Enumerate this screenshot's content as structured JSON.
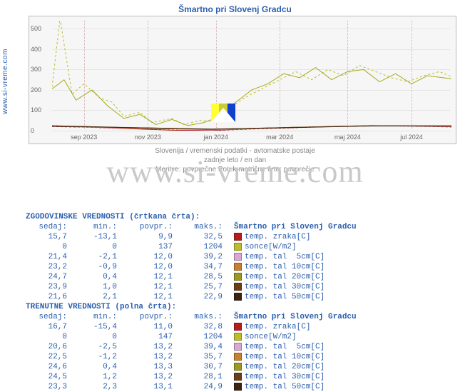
{
  "sidebar": {
    "link": "www.si-vreme.com"
  },
  "chart": {
    "type": "line",
    "title": "Šmartno pri Slovenj Gradcu",
    "subtitle1": "Slovenija / vremenski podatki - avtomatske postaje",
    "subtitle2": "zadnje leto / en dan",
    "subtitle3": "Meritve: povprečne   Potek metrične črte: povprečje",
    "background_color": "#f6f6f6",
    "grid_color": "#e5e5e5",
    "vgrid_color": "#d4b0b0",
    "border_color": "#bbbbbb",
    "ylim": [
      0,
      540
    ],
    "yticks": [
      0,
      100,
      200,
      300,
      400,
      500
    ],
    "xlabels": [
      "sep 2023",
      "nov 2023",
      "jan 2024",
      "mar 2024",
      "maj 2024",
      "jul 2024"
    ],
    "xpositions_pct": [
      8,
      24,
      41,
      57,
      74,
      90
    ],
    "series": [
      {
        "name": "sonce_hist",
        "color": "#bdbd2a",
        "dash": "3,3",
        "width": 1,
        "points": [
          [
            0,
            215
          ],
          [
            2,
            550
          ],
          [
            5,
            180
          ],
          [
            8,
            230
          ],
          [
            12,
            160
          ],
          [
            15,
            140
          ],
          [
            18,
            70
          ],
          [
            22,
            90
          ],
          [
            25,
            40
          ],
          [
            30,
            60
          ],
          [
            33,
            30
          ],
          [
            37,
            50
          ],
          [
            41,
            45
          ],
          [
            45,
            120
          ],
          [
            49,
            170
          ],
          [
            53,
            210
          ],
          [
            57,
            250
          ],
          [
            61,
            290
          ],
          [
            65,
            250
          ],
          [
            69,
            300
          ],
          [
            73,
            270
          ],
          [
            77,
            320
          ],
          [
            81,
            290
          ],
          [
            85,
            260
          ],
          [
            89,
            240
          ],
          [
            93,
            270
          ],
          [
            97,
            290
          ],
          [
            100,
            265
          ]
        ]
      },
      {
        "name": "sonce_curr",
        "color": "#a8a81e",
        "dash": "",
        "width": 1,
        "points": [
          [
            0,
            205
          ],
          [
            3,
            250
          ],
          [
            6,
            150
          ],
          [
            10,
            200
          ],
          [
            14,
            120
          ],
          [
            18,
            60
          ],
          [
            22,
            80
          ],
          [
            26,
            30
          ],
          [
            30,
            55
          ],
          [
            34,
            25
          ],
          [
            38,
            40
          ],
          [
            42,
            70
          ],
          [
            46,
            140
          ],
          [
            50,
            200
          ],
          [
            54,
            230
          ],
          [
            58,
            280
          ],
          [
            62,
            260
          ],
          [
            66,
            310
          ],
          [
            70,
            250
          ],
          [
            74,
            290
          ],
          [
            78,
            300
          ],
          [
            82,
            240
          ],
          [
            86,
            280
          ],
          [
            90,
            230
          ],
          [
            94,
            270
          ],
          [
            98,
            260
          ],
          [
            100,
            255
          ]
        ]
      },
      {
        "name": "temp_zraka_hist",
        "color": "#a01818",
        "dash": "3,3",
        "width": 1,
        "points": [
          [
            0,
            20
          ],
          [
            10,
            16
          ],
          [
            20,
            10
          ],
          [
            30,
            3
          ],
          [
            40,
            0
          ],
          [
            50,
            8
          ],
          [
            60,
            14
          ],
          [
            70,
            20
          ],
          [
            80,
            24
          ],
          [
            90,
            22
          ],
          [
            100,
            18
          ]
        ]
      },
      {
        "name": "temp_zraka_curr",
        "color": "#b71c1c",
        "dash": "",
        "width": 1,
        "points": [
          [
            0,
            21
          ],
          [
            10,
            17
          ],
          [
            20,
            9
          ],
          [
            30,
            2
          ],
          [
            40,
            1
          ],
          [
            50,
            9
          ],
          [
            60,
            15
          ],
          [
            70,
            21
          ],
          [
            80,
            25
          ],
          [
            90,
            23
          ],
          [
            100,
            19
          ]
        ]
      },
      {
        "name": "tal5_curr",
        "color": "#d8a8d0",
        "dash": "",
        "width": 1,
        "points": [
          [
            0,
            22
          ],
          [
            20,
            12
          ],
          [
            40,
            4
          ],
          [
            60,
            16
          ],
          [
            80,
            24
          ],
          [
            100,
            21
          ]
        ]
      },
      {
        "name": "tal10_curr",
        "color": "#c88030",
        "dash": "",
        "width": 1,
        "points": [
          [
            0,
            23
          ],
          [
            20,
            13
          ],
          [
            40,
            5
          ],
          [
            60,
            16
          ],
          [
            80,
            24
          ],
          [
            100,
            22
          ]
        ]
      },
      {
        "name": "tal20_curr",
        "color": "#9a9a20",
        "dash": "",
        "width": 1,
        "points": [
          [
            0,
            24
          ],
          [
            20,
            14
          ],
          [
            40,
            6
          ],
          [
            60,
            16
          ],
          [
            80,
            24
          ],
          [
            100,
            23
          ]
        ]
      },
      {
        "name": "tal30_curr",
        "color": "#6b3e1a",
        "dash": "",
        "width": 1,
        "points": [
          [
            0,
            24
          ],
          [
            20,
            15
          ],
          [
            40,
            7
          ],
          [
            60,
            16
          ],
          [
            80,
            24
          ],
          [
            100,
            24
          ]
        ]
      },
      {
        "name": "tal50_curr",
        "color": "#3d2410",
        "dash": "",
        "width": 1,
        "points": [
          [
            0,
            22
          ],
          [
            20,
            15
          ],
          [
            40,
            8
          ],
          [
            60,
            15
          ],
          [
            80,
            23
          ],
          [
            100,
            23
          ]
        ]
      }
    ]
  },
  "flag": {
    "panels": [
      "#ffff33",
      "#cccc33",
      "#1040d0"
    ],
    "triangle": "#ffffff"
  },
  "watermark": "www.si-vreme.com",
  "tables": {
    "section1_title": "ZGODOVINSKE VREDNOSTI (črtkana črta):",
    "section2_title": "TRENUTNE VREDNOSTI (polna črta):",
    "col_headers": {
      "c1": "sedaj:",
      "c2": "min.:",
      "c3": "povpr.:",
      "c4": "maks.:"
    },
    "legend_header": "Šmartno pri Slovenj Gradcu",
    "legend": [
      {
        "color": "#b71c1c",
        "label": "temp. zraka[C]"
      },
      {
        "color": "#bdbd2a",
        "label": "sonce[W/m2]"
      },
      {
        "color": "#d8a8d0",
        "label": "temp. tal  5cm[C]"
      },
      {
        "color": "#c88030",
        "label": "temp. tal 10cm[C]"
      },
      {
        "color": "#9a9a20",
        "label": "temp. tal 20cm[C]"
      },
      {
        "color": "#6b3e1a",
        "label": "temp. tal 30cm[C]"
      },
      {
        "color": "#3d2410",
        "label": "temp. tal 50cm[C]"
      }
    ],
    "historic": [
      [
        "15,7",
        "-13,1",
        "9,9",
        "32,5"
      ],
      [
        "0",
        "0",
        "137",
        "1204"
      ],
      [
        "21,4",
        "-2,1",
        "12,0",
        "39,2"
      ],
      [
        "23,2",
        "-0,9",
        "12,0",
        "34,7"
      ],
      [
        "24,7",
        "0,4",
        "12,1",
        "28,5"
      ],
      [
        "23,9",
        "1,0",
        "12,1",
        "25,7"
      ],
      [
        "21,6",
        "2,1",
        "12,1",
        "22,9"
      ]
    ],
    "current": [
      [
        "16,7",
        "-15,4",
        "11,0",
        "32,8"
      ],
      [
        "0",
        "0",
        "147",
        "1204"
      ],
      [
        "20,6",
        "-2,5",
        "13,2",
        "39,4"
      ],
      [
        "22,5",
        "-1,2",
        "13,2",
        "35,7"
      ],
      [
        "24,6",
        "0,4",
        "13,3",
        "30,7"
      ],
      [
        "24,5",
        "1,2",
        "13,2",
        "28,1"
      ],
      [
        "23,3",
        "2,3",
        "13,1",
        "24,9"
      ]
    ]
  }
}
